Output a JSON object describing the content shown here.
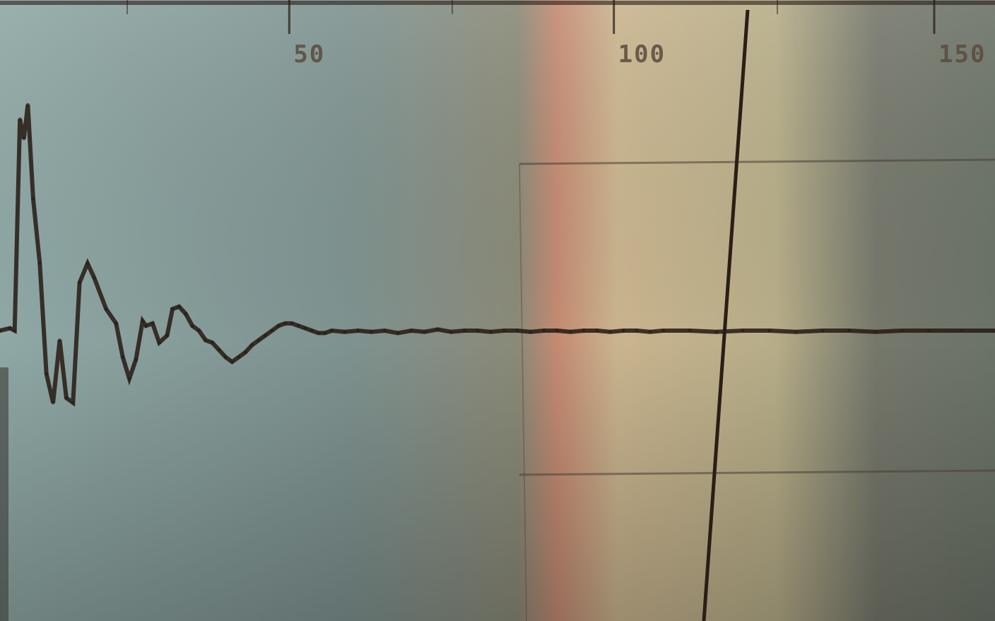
{
  "colors": {
    "trace": "#2a1e17",
    "gridline": "#4a3f35",
    "tick_text": "#5b4a3d",
    "screen_left": "#8fa3a0",
    "screen_mid": "#76888a",
    "warm_band": "#c48a72",
    "warm_band_light": "#d4b98c",
    "screen_right": "#6f7468"
  },
  "chart_data": {
    "type": "line",
    "title": "",
    "xlabel": "",
    "ylabel": "",
    "x_ticks": [
      {
        "value": 50,
        "label": "50"
      },
      {
        "value": 100,
        "label": "100"
      },
      {
        "value": 150,
        "label": "150"
      }
    ],
    "xlim": [
      0,
      150
    ],
    "ylim": [
      -10,
      10
    ],
    "grid": true,
    "series": [
      {
        "values": [
          [
            0.0,
            0.0
          ],
          [
            1.5,
            0.1
          ],
          [
            2.2,
            0.0
          ],
          [
            3.0,
            8.8
          ],
          [
            3.6,
            8.0
          ],
          [
            4.2,
            9.4
          ],
          [
            5.0,
            5.5
          ],
          [
            6.0,
            2.8
          ],
          [
            7.0,
            -1.8
          ],
          [
            8.0,
            -3.0
          ],
          [
            9.0,
            -0.4
          ],
          [
            10.0,
            -2.8
          ],
          [
            11.0,
            -3.0
          ],
          [
            12.0,
            2.0
          ],
          [
            13.2,
            2.8
          ],
          [
            14.2,
            2.2
          ],
          [
            16.0,
            0.9
          ],
          [
            17.5,
            0.3
          ],
          [
            18.5,
            -1.1
          ],
          [
            19.5,
            -2.0
          ],
          [
            20.5,
            -1.2
          ],
          [
            21.5,
            0.4
          ],
          [
            22.0,
            0.2
          ],
          [
            23.0,
            0.3
          ],
          [
            24.0,
            -0.5
          ],
          [
            25.2,
            -0.2
          ],
          [
            26.0,
            0.9
          ],
          [
            27.0,
            1.0
          ],
          [
            28.0,
            0.7
          ],
          [
            29.0,
            0.2
          ],
          [
            30.0,
            0.0
          ],
          [
            31.0,
            -0.4
          ],
          [
            32.0,
            -0.5
          ],
          [
            33.0,
            -0.8
          ],
          [
            34.0,
            -1.1
          ],
          [
            35.0,
            -1.3
          ],
          [
            36.0,
            -1.1
          ],
          [
            37.0,
            -0.9
          ],
          [
            38.0,
            -0.6
          ],
          [
            39.0,
            -0.4
          ],
          [
            40.0,
            -0.2
          ],
          [
            41.0,
            0.0
          ],
          [
            42.0,
            0.2
          ],
          [
            43.0,
            0.3
          ],
          [
            44.0,
            0.3
          ],
          [
            45.0,
            0.2
          ],
          [
            46.0,
            0.1
          ],
          [
            47.0,
            0.0
          ],
          [
            48.0,
            -0.1
          ],
          [
            49.0,
            -0.1
          ],
          [
            50.0,
            0.0
          ],
          [
            52.0,
            -0.05
          ],
          [
            54.0,
            0.0
          ],
          [
            56.0,
            -0.05
          ],
          [
            58.0,
            0.0
          ],
          [
            60.0,
            -0.1
          ],
          [
            62.0,
            0.0
          ],
          [
            64.0,
            -0.05
          ],
          [
            66.0,
            0.05
          ],
          [
            68.0,
            -0.05
          ],
          [
            70.0,
            0.0
          ],
          [
            72.0,
            0.0
          ],
          [
            74.0,
            -0.05
          ],
          [
            76.0,
            0.0
          ],
          [
            78.0,
            0.0
          ],
          [
            80.0,
            -0.05
          ],
          [
            82.0,
            0.0
          ],
          [
            84.0,
            0.0
          ],
          [
            86.0,
            -0.05
          ],
          [
            88.0,
            0.0
          ],
          [
            90.0,
            0.0
          ],
          [
            92.0,
            -0.05
          ],
          [
            94.0,
            0.0
          ],
          [
            96.0,
            0.0
          ],
          [
            98.0,
            -0.05
          ],
          [
            100.0,
            0.0
          ],
          [
            104.0,
            0.0
          ],
          [
            108.0,
            -0.05
          ],
          [
            112.0,
            0.0
          ],
          [
            116.0,
            0.0
          ],
          [
            120.0,
            -0.05
          ],
          [
            124.0,
            0.0
          ],
          [
            128.0,
            0.0
          ],
          [
            132.0,
            -0.05
          ],
          [
            136.0,
            0.0
          ],
          [
            140.0,
            0.0
          ],
          [
            145.0,
            0.0
          ],
          [
            150.0,
            0.0
          ]
        ]
      }
    ]
  }
}
